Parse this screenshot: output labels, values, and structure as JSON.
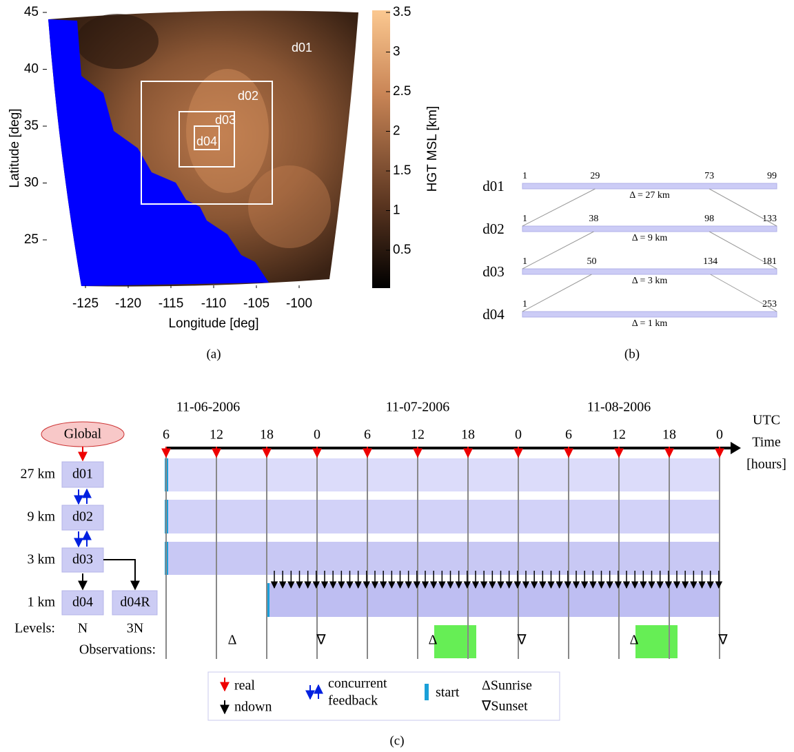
{
  "panel_a": {
    "caption": "(a)",
    "x_label": "Longitude [deg]",
    "y_label": "Latitude [deg]",
    "xticks": [
      -125,
      -120,
      -115,
      -110,
      -105,
      -100
    ],
    "yticks": [
      45,
      40,
      35,
      30,
      25
    ],
    "colorbar_label": "HGT MSL [km]",
    "colorbar_ticks": [
      3.5,
      3,
      2.5,
      2,
      1.5,
      1,
      0.5
    ],
    "domain_labels": [
      "d01",
      "d02",
      "d03",
      "d04"
    ]
  },
  "panel_b": {
    "caption": "(b)",
    "rows": [
      {
        "name": "d01",
        "ticks": [
          1,
          29,
          73,
          99
        ],
        "spacing": "Δ = 27 km"
      },
      {
        "name": "d02",
        "ticks": [
          1,
          38,
          98,
          133
        ],
        "spacing": "Δ = 9 km"
      },
      {
        "name": "d03",
        "ticks": [
          1,
          50,
          134,
          181
        ],
        "spacing": "Δ = 3 km"
      },
      {
        "name": "d04",
        "ticks": [
          1,
          253
        ],
        "spacing": "Δ = 1 km"
      }
    ]
  },
  "panel_c": {
    "caption": "(c)",
    "dates": [
      "11-06-2006",
      "11-07-2006",
      "11-08-2006"
    ],
    "hours": [
      6,
      12,
      18,
      0,
      6,
      12,
      18,
      0,
      6,
      12,
      18,
      0
    ],
    "axis_label": [
      "UTC",
      "Time",
      "[hours]"
    ],
    "parent": "Global",
    "levels": [
      {
        "resolution": "27 km",
        "domain": "d01"
      },
      {
        "resolution": "9 km",
        "domain": "d02"
      },
      {
        "resolution": "3 km",
        "domain": "d03"
      },
      {
        "resolution": "1 km",
        "domain": "d04"
      }
    ],
    "extra_domain": "d04R",
    "levels_label": "Levels:",
    "level_counts": [
      "N",
      "3N"
    ],
    "observations_label": "Observations:",
    "observation_marks": [
      "Δ",
      "∇",
      "Δ",
      "∇",
      "Δ",
      "∇"
    ],
    "legend": {
      "real": "real",
      "ndown": "ndown",
      "concurrent_feedback": [
        "concurrent",
        "feedback"
      ],
      "start": "start",
      "sunrise": "ΔSunrise",
      "sunset": "∇Sunset"
    }
  }
}
